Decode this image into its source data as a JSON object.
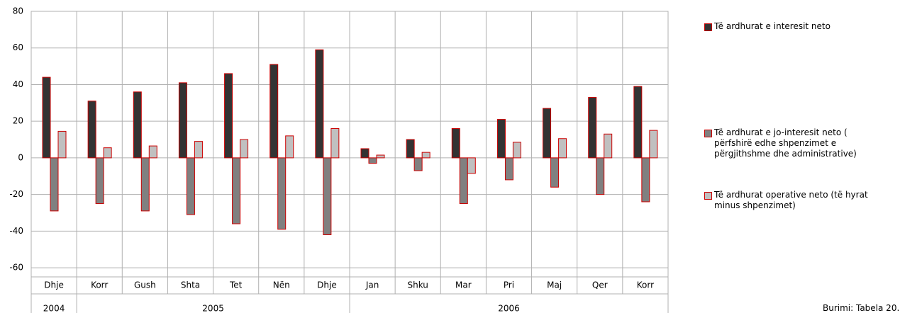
{
  "chart_data": {
    "type": "bar",
    "categories": [
      "Dhje",
      "Korr",
      "Gush",
      "Shta",
      "Tet",
      "Nën",
      "Dhje",
      "Jan",
      "Shku",
      "Mar",
      "Pri",
      "Maj",
      "Qer",
      "Korr"
    ],
    "year_labels": [
      "2004",
      "2005",
      null,
      null,
      null,
      null,
      null,
      "2006",
      null,
      null,
      null,
      null,
      null,
      null
    ],
    "series": [
      {
        "name": "Të ardhurat e interesit neto",
        "color": "#333333",
        "values": [
          44,
          31,
          36,
          41,
          46,
          51,
          59,
          5,
          10,
          16,
          21,
          27,
          33,
          39
        ]
      },
      {
        "name": "Të ardhurat e jo-interesit neto ( përfshirë edhe shpenzimet e përgjithshme dhe administrative)",
        "color": "#808080",
        "values": [
          -29,
          -25,
          -29,
          -31,
          -36,
          -39,
          -42,
          -3,
          -7,
          -25,
          -12,
          -16,
          -20,
          -24
        ]
      },
      {
        "name": "Të ardhurat operative neto (të hyrat minus shpenzimet)",
        "color": "#c0c0c0",
        "values": [
          14.5,
          5.5,
          6.5,
          9,
          10,
          12,
          16,
          1.5,
          3,
          -8.5,
          8.5,
          10.5,
          13,
          15
        ]
      }
    ],
    "bar_edge_color": "#cc0000",
    "ylim": [
      -65,
      80
    ],
    "yticks": [
      -60,
      -40,
      -20,
      0,
      20,
      40,
      60,
      80
    ],
    "grid": true,
    "source": "Burimi: Tabela 20."
  }
}
